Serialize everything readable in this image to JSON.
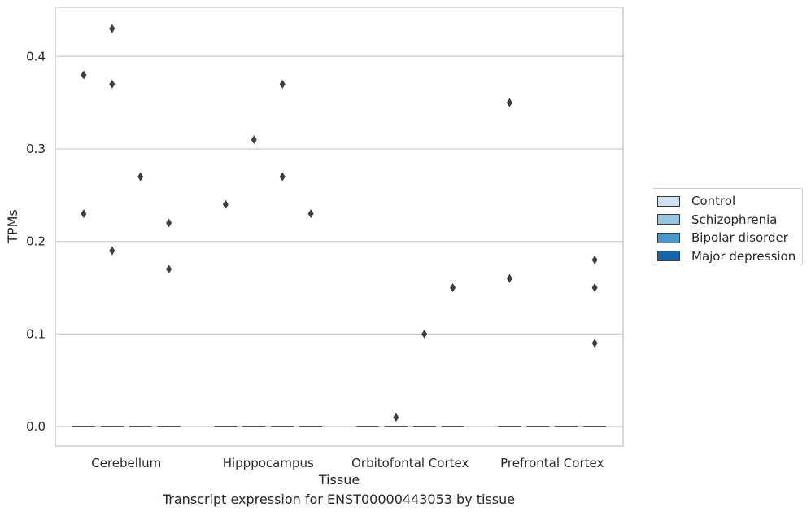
{
  "chart_data": {
    "type": "box",
    "xlabel": "Tissue",
    "ylabel": "TPMs",
    "caption": "Transcript expression for ENST00000443053 by tissue",
    "ylim": [
      -0.021,
      0.453
    ],
    "yticks": [
      0.0,
      0.1,
      0.2,
      0.3,
      0.4
    ],
    "ytick_labels": [
      "0.0",
      "0.1",
      "0.2",
      "0.3",
      "0.4"
    ],
    "grid": "horizontal",
    "legend_position": "right",
    "categories": [
      "Cerebellum",
      "Hipppocampus",
      "Orbitofontal Cortex",
      "Prefrontal Cortex"
    ],
    "series": [
      {
        "name": "Control",
        "color": "#d0e1f2",
        "median": [
          0.0,
          0.0,
          0.0,
          0.0
        ],
        "outliers": [
          [
            0.38,
            0.23
          ],
          [
            0.24
          ],
          [],
          [
            0.35,
            0.16
          ]
        ]
      },
      {
        "name": "Schizophrenia",
        "color": "#94c4df",
        "median": [
          0.0,
          0.0,
          0.0,
          0.0
        ],
        "outliers": [
          [
            0.43,
            0.37,
            0.19
          ],
          [
            0.31
          ],
          [
            0.01
          ],
          []
        ]
      },
      {
        "name": "Bipolar disorder",
        "color": "#4a98c9",
        "median": [
          0.0,
          0.0,
          0.0,
          0.0
        ],
        "outliers": [
          [
            0.27
          ],
          [
            0.37,
            0.27
          ],
          [
            0.1
          ],
          []
        ]
      },
      {
        "name": "Major depression",
        "color": "#1764ab",
        "median": [
          0.0,
          0.0,
          0.0,
          0.0
        ],
        "outliers": [
          [
            0.22,
            0.17
          ],
          [
            0.23
          ],
          [
            0.15
          ],
          [
            0.18,
            0.15,
            0.09
          ]
        ]
      }
    ]
  }
}
